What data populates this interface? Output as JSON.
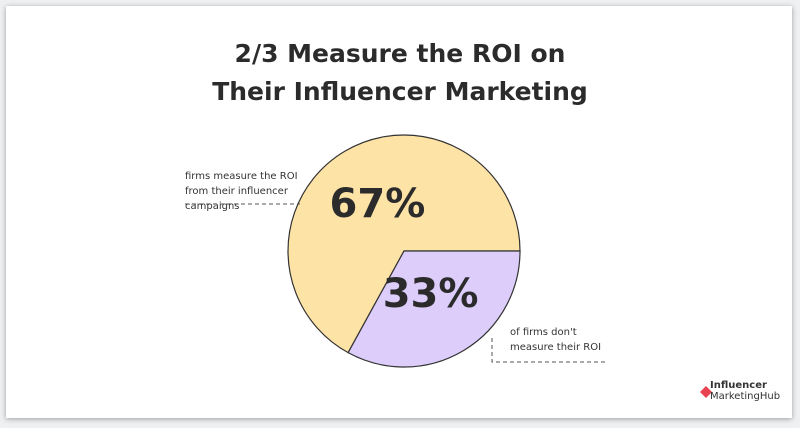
{
  "chart_data": {
    "type": "pie",
    "title": [
      "2/3 Measure the ROI on",
      "Their Influencer Marketing"
    ],
    "categories": [
      "firms measure the ROI from their influencer campaigns",
      "of firms don't measure their ROI"
    ],
    "values": [
      67,
      33
    ],
    "value_labels": [
      "67%",
      "33%"
    ],
    "colors": [
      "#fde3a6",
      "#ddcdfb"
    ],
    "startangle": 0,
    "counterclock": true
  },
  "logo": [
    "Influencer",
    "MarketingHub"
  ]
}
